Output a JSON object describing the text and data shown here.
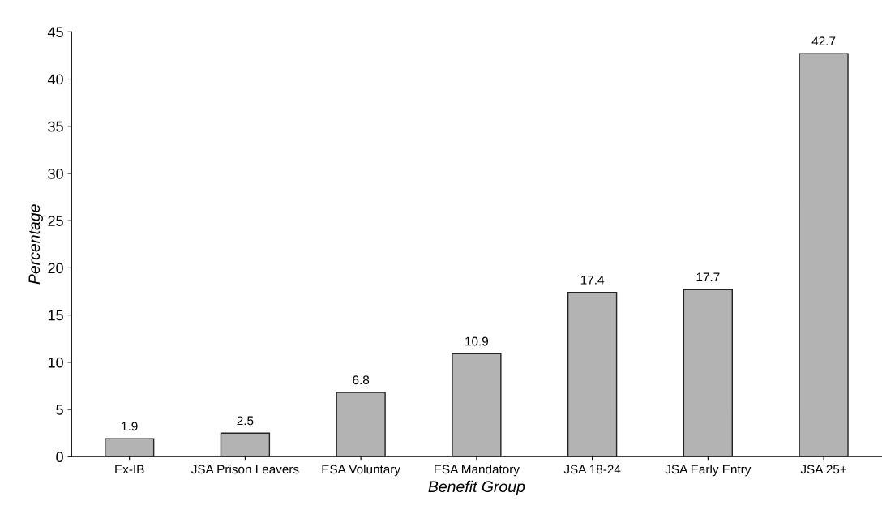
{
  "chart_data": {
    "type": "bar",
    "xlabel": "Benefit Group",
    "ylabel": "Percentage",
    "categories": [
      "Ex-IB",
      "JSA Prison Leavers",
      "ESA Voluntary",
      "ESA Mandatory",
      "JSA 18-24",
      "JSA Early Entry",
      "JSA 25+"
    ],
    "values": [
      1.9,
      2.5,
      6.8,
      10.9,
      17.4,
      17.7,
      42.7
    ],
    "color": "#b3b3b3",
    "ylim": [
      0,
      45
    ],
    "yticks": [
      0,
      5,
      10,
      15,
      20,
      25,
      30,
      35,
      40,
      45
    ],
    "grid": false,
    "data_labels": true
  }
}
